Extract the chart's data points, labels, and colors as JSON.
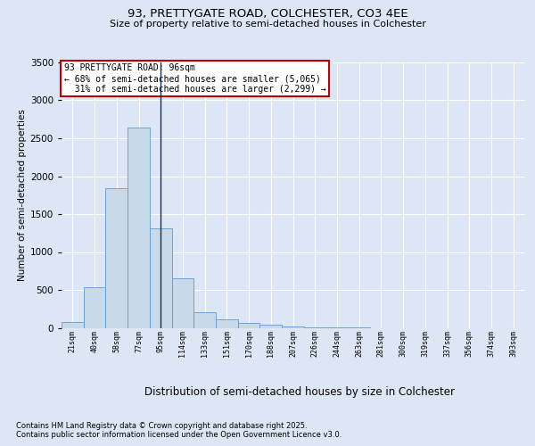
{
  "title1": "93, PRETTYGATE ROAD, COLCHESTER, CO3 4EE",
  "title2": "Size of property relative to semi-detached houses in Colchester",
  "xlabel": "Distribution of semi-detached houses by size in Colchester",
  "ylabel": "Number of semi-detached properties",
  "footnote1": "Contains HM Land Registry data © Crown copyright and database right 2025.",
  "footnote2": "Contains public sector information licensed under the Open Government Licence v3.0.",
  "bar_color": "#c8d9ea",
  "bar_edge_color": "#5b9bd5",
  "vline_color": "#1a2e4a",
  "annotation_text": "93 PRETTYGATE ROAD: 96sqm\n← 68% of semi-detached houses are smaller (5,065)\n  31% of semi-detached houses are larger (2,299) →",
  "annotation_box_color": "#ffffff",
  "annotation_edge_color": "#c00000",
  "categories": [
    "21sqm",
    "40sqm",
    "58sqm",
    "77sqm",
    "95sqm",
    "114sqm",
    "133sqm",
    "151sqm",
    "170sqm",
    "188sqm",
    "207sqm",
    "226sqm",
    "244sqm",
    "263sqm",
    "281sqm",
    "300sqm",
    "319sqm",
    "337sqm",
    "356sqm",
    "374sqm",
    "393sqm"
  ],
  "values": [
    75,
    530,
    1840,
    2640,
    1310,
    650,
    210,
    110,
    65,
    40,
    15,
    5,
    2,
    1,
    0,
    0,
    0,
    0,
    0,
    0,
    0
  ],
  "property_bin_index": 4,
  "ylim": [
    0,
    3500
  ],
  "yticks": [
    0,
    500,
    1000,
    1500,
    2000,
    2500,
    3000,
    3500
  ],
  "background_color": "#dce6f5",
  "plot_background": "#dce6f5",
  "grid_color": "#ffffff"
}
